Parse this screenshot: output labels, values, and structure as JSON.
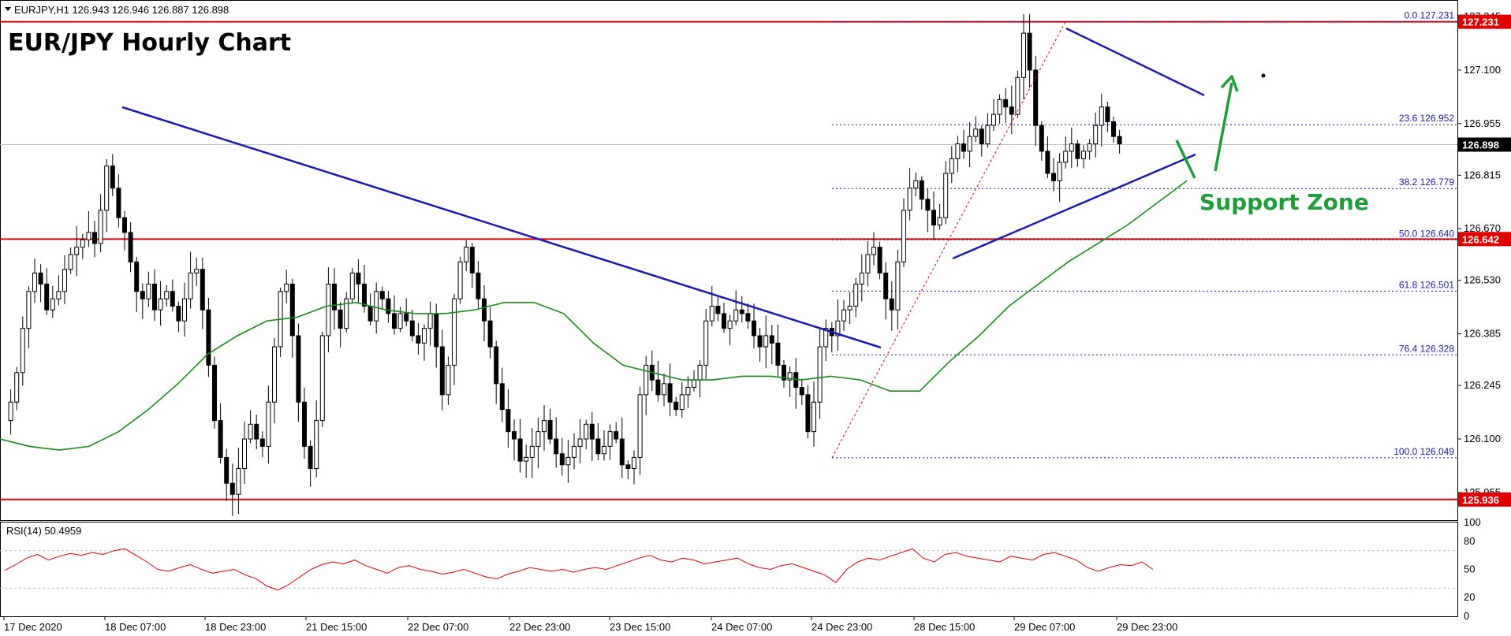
{
  "header": {
    "symbol_line": "EURJPY,H1  126.943 126.946 126.887 126.898",
    "title": "EUR/JPY Hourly Chart"
  },
  "annotations": {
    "support_zone": "Support Zone"
  },
  "colors": {
    "up_candle": "#ffffff",
    "down_candle": "#000000",
    "trendline": "#1a1ab0",
    "ma": "#1a8a1a",
    "level_line": "#e00000",
    "price_tag_red": "#e00000",
    "price_tag_black": "#000000",
    "arrow": "#1f9d3a",
    "fib_line": "#1a1ab0",
    "rsi": "#e00000"
  },
  "chart_data": [
    {
      "type": "candlestick",
      "title": "EUR/JPY Hourly Chart",
      "symbol": "EURJPY",
      "timeframe": "H1",
      "ohlc_current": {
        "open": 126.943,
        "high": 126.946,
        "low": 126.887,
        "close": 126.898
      },
      "y_range": [
        125.88,
        127.29
      ],
      "y_ticks": [
        "127.245",
        "127.100",
        "126.955",
        "126.815",
        "126.670",
        "126.530",
        "126.385",
        "126.245",
        "126.100",
        "125.955"
      ],
      "x_ticks": [
        "17 Dec 2020",
        "18 Dec 07:00",
        "18 Dec 23:00",
        "21 Dec 15:00",
        "22 Dec 07:00",
        "22 Dec 23:00",
        "23 Dec 15:00",
        "24 Dec 07:00",
        "24 Dec 23:00",
        "28 Dec 15:00",
        "29 Dec 07:00",
        "29 Dec 23:00"
      ],
      "horizontal_levels": [
        {
          "value": 127.231,
          "label": "127.231"
        },
        {
          "value": 126.642,
          "label": "126.642"
        },
        {
          "value": 125.936,
          "label": "125.936"
        }
      ],
      "current_price": {
        "value": 126.898,
        "label": "126.898"
      },
      "fibonacci": [
        {
          "ratio": "0.0",
          "value": 127.231,
          "label": "0.0 127.231"
        },
        {
          "ratio": "23.6",
          "value": 126.952,
          "label": "23.6 126.952"
        },
        {
          "ratio": "38.2",
          "value": 126.779,
          "label": "38.2 126.779"
        },
        {
          "ratio": "50.0",
          "value": 126.64,
          "label": "50.0 126.640"
        },
        {
          "ratio": "61.8",
          "value": 126.501,
          "label": "61.8 126.501"
        },
        {
          "ratio": "76.4",
          "value": 126.328,
          "label": "76.4 126.328"
        },
        {
          "ratio": "100.0",
          "value": 126.049,
          "label": "100.0 126.049"
        }
      ],
      "close_path": [
        126.15,
        126.2,
        126.28,
        126.4,
        126.5,
        126.55,
        126.52,
        126.45,
        126.48,
        126.5,
        126.56,
        126.6,
        126.62,
        126.64,
        126.66,
        126.63,
        126.72,
        126.84,
        126.78,
        126.7,
        126.66,
        126.58,
        126.5,
        126.48,
        126.52,
        126.45,
        126.48,
        126.5,
        126.46,
        126.42,
        126.48,
        126.55,
        126.56,
        126.45,
        126.3,
        126.15,
        126.05,
        125.98,
        125.95,
        126.02,
        126.1,
        126.14,
        126.1,
        126.08,
        126.2,
        126.35,
        126.5,
        126.52,
        126.38,
        126.2,
        126.08,
        126.02,
        126.15,
        126.38,
        126.52,
        126.45,
        126.4,
        126.48,
        126.55,
        126.52,
        126.46,
        126.42,
        126.5,
        126.48,
        126.44,
        126.4,
        126.44,
        126.42,
        126.38,
        126.36,
        126.4,
        126.44,
        126.35,
        126.22,
        126.3,
        126.48,
        126.58,
        126.62,
        126.55,
        126.48,
        126.42,
        126.35,
        126.25,
        126.18,
        126.12,
        126.1,
        126.04,
        126.05,
        126.08,
        126.12,
        126.15,
        126.1,
        126.06,
        126.03,
        126.05,
        126.08,
        126.1,
        126.14,
        126.1,
        126.06,
        126.08,
        126.12,
        126.1,
        126.03,
        126.02,
        126.05,
        126.22,
        126.3,
        126.26,
        126.22,
        126.25,
        126.2,
        126.18,
        126.22,
        126.24,
        126.26,
        126.3,
        126.42,
        126.46,
        126.44,
        126.4,
        126.42,
        126.45,
        126.44,
        126.42,
        126.38,
        126.35,
        126.38,
        126.36,
        126.3,
        126.26,
        126.28,
        126.24,
        126.22,
        126.12,
        126.2,
        126.35,
        126.4,
        126.38,
        126.42,
        126.45,
        126.46,
        126.52,
        126.55,
        126.6,
        126.62,
        126.55,
        126.48,
        126.45,
        126.58,
        126.72,
        126.78,
        126.8,
        126.75,
        126.72,
        126.68,
        126.7,
        126.82,
        126.86,
        126.9,
        126.88,
        126.92,
        126.94,
        126.9,
        126.95,
        126.98,
        127.02,
        127.0,
        126.98,
        127.08,
        127.2,
        127.1,
        126.95,
        126.88,
        126.82,
        126.8,
        126.85,
        126.88,
        126.9,
        126.86,
        126.88,
        126.9,
        126.95,
        127.0,
        126.96,
        126.92,
        126.9
      ],
      "ma_path": [
        126.1,
        126.08,
        126.07,
        126.08,
        126.12,
        126.18,
        126.25,
        126.33,
        126.38,
        126.42,
        126.43,
        126.46,
        126.47,
        126.45,
        126.44,
        126.44,
        126.45,
        126.47,
        126.47,
        126.44,
        126.36,
        126.3,
        126.28,
        126.26,
        126.26,
        126.27,
        126.27,
        126.26,
        126.27,
        126.26,
        126.23,
        126.23,
        126.31,
        126.38,
        126.46,
        126.52,
        126.58,
        126.63,
        126.68,
        126.74,
        126.8
      ],
      "rsi": {
        "label": "RSI(14) 50.4959",
        "period": 14,
        "last": 50.4959,
        "levels": [
          70,
          30
        ],
        "ticks": [
          "100",
          "80",
          "50",
          "20",
          "0"
        ],
        "values": [
          49,
          55,
          62,
          66,
          60,
          64,
          67,
          65,
          68,
          66,
          70,
          72,
          65,
          58,
          50,
          48,
          52,
          55,
          50,
          46,
          48,
          50,
          44,
          40,
          32,
          28,
          34,
          42,
          50,
          55,
          58,
          56,
          60,
          54,
          50,
          46,
          52,
          54,
          50,
          48,
          45,
          47,
          50,
          46,
          42,
          40,
          45,
          48,
          52,
          50,
          48,
          50,
          47,
          50,
          52,
          50,
          54,
          58,
          62,
          65,
          60,
          58,
          62,
          60,
          56,
          58,
          60,
          62,
          56,
          52,
          50,
          54,
          56,
          52,
          48,
          44,
          36,
          50,
          58,
          62,
          60,
          64,
          68,
          72,
          62,
          58,
          66,
          68,
          64,
          62,
          60,
          58,
          64,
          62,
          60,
          66,
          68,
          64,
          60,
          52,
          48,
          52,
          55,
          54,
          58,
          50
        ]
      }
    }
  ]
}
